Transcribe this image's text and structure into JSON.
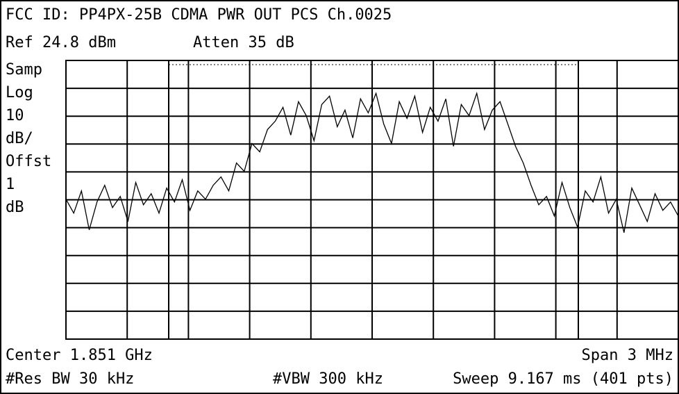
{
  "chart_data": {
    "type": "line",
    "title": "FCC ID: PP4PX-25B CDMA PWR OUT PCS Ch.0025",
    "ref_label": "Ref 24.8 dBm",
    "atten_label": "Atten 35 dB",
    "side_labels": [
      "Samp",
      "Log",
      "10",
      "dB/",
      "Offst",
      "1",
      "dB"
    ],
    "center_label": "Center 1.851 GHz",
    "span_label": "Span 3 MHz",
    "rbw_label": "#Res BW 30 kHz",
    "vbw_label": "#VBW 300 kHz",
    "sweep_label": "Sweep 9.167 ms (401 pts)",
    "ylim": [
      -75.2,
      24.8
    ],
    "color": "#000000",
    "values": [
      -25,
      -30,
      -22,
      -36,
      -26,
      -20,
      -28,
      -24,
      -33,
      -19,
      -27,
      -23,
      -30,
      -21,
      -26,
      -18,
      -29,
      -22,
      -25,
      -20,
      -17,
      -22,
      -12,
      -15,
      -5,
      -8,
      0,
      3,
      8,
      -2,
      10,
      5,
      -4,
      9,
      12,
      1,
      7,
      -3,
      11,
      6,
      13,
      2,
      -5,
      10,
      4,
      12,
      -1,
      8,
      3,
      11,
      -6,
      9,
      5,
      13,
      0,
      7,
      10,
      2,
      -6,
      -12,
      -20,
      -27,
      -24,
      -31,
      -19,
      -28,
      -35,
      -22,
      -26,
      -17,
      -30,
      -25,
      -37,
      -21,
      -27,
      -33,
      -23,
      -29,
      -26,
      -31
    ]
  }
}
